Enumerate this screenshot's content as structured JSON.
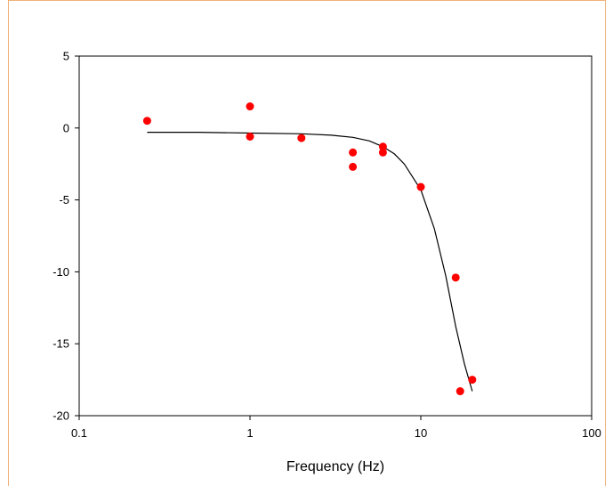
{
  "chart_data": {
    "type": "scatter",
    "title": "",
    "xlabel": "Frequency (Hz)",
    "ylabel": "",
    "xscale": "log",
    "xlim": [
      0.1,
      100
    ],
    "ylim": [
      -20,
      5
    ],
    "grid": false,
    "legend": "none",
    "x_ticks": [
      0.1,
      1,
      10,
      100
    ],
    "x_tick_labels": [
      "0.1",
      "1",
      "10",
      "100"
    ],
    "y_ticks": [
      5,
      0,
      -5,
      -10,
      -15,
      -20
    ],
    "y_tick_labels": [
      "5",
      "0",
      "-5",
      "-10",
      "-15",
      "-20"
    ],
    "series": [
      {
        "kind": "points",
        "color": "#ff0000",
        "x": [
          0.25,
          1,
          1,
          2,
          4,
          4,
          6,
          6,
          10,
          16,
          17,
          20
        ],
        "y": [
          0.5,
          1.5,
          -0.6,
          -0.7,
          -1.7,
          -2.7,
          -1.3,
          -1.7,
          -4.1,
          -10.4,
          -18.3,
          -17.5
        ]
      },
      {
        "kind": "fit-line",
        "color": "#000000",
        "x": [
          0.25,
          0.5,
          1,
          2,
          3,
          4,
          5,
          6,
          7,
          8,
          10,
          12,
          14,
          16,
          18,
          20
        ],
        "y": [
          -0.3,
          -0.3,
          -0.35,
          -0.4,
          -0.5,
          -0.65,
          -0.9,
          -1.3,
          -1.8,
          -2.5,
          -4.3,
          -7.0,
          -10.3,
          -13.8,
          -16.4,
          -18.3
        ]
      }
    ]
  }
}
